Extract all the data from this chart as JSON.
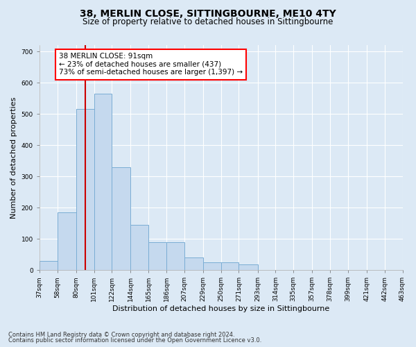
{
  "title": "38, MERLIN CLOSE, SITTINGBOURNE, ME10 4TY",
  "subtitle": "Size of property relative to detached houses in Sittingbourne",
  "xlabel": "Distribution of detached houses by size in Sittingbourne",
  "ylabel": "Number of detached properties",
  "footnote1": "Contains HM Land Registry data © Crown copyright and database right 2024.",
  "footnote2": "Contains public sector information licensed under the Open Government Licence v3.0.",
  "annotation_title": "38 MERLIN CLOSE: 91sqm",
  "annotation_line1": "← 23% of detached houses are smaller (437)",
  "annotation_line2": "73% of semi-detached houses are larger (1,397) →",
  "bar_color": "#c5d9ee",
  "bar_edge_color": "#7aadd4",
  "vline_color": "#cc0000",
  "vline_x": 91,
  "bin_edges": [
    37,
    58,
    80,
    101,
    122,
    144,
    165,
    186,
    207,
    229,
    250,
    271,
    293,
    314,
    335,
    357,
    378,
    399,
    421,
    442,
    463
  ],
  "bar_heights": [
    30,
    185,
    515,
    565,
    330,
    145,
    90,
    88,
    40,
    25,
    25,
    18,
    0,
    0,
    0,
    0,
    0,
    0,
    0,
    0
  ],
  "ylim": [
    0,
    720
  ],
  "yticks": [
    0,
    100,
    200,
    300,
    400,
    500,
    600,
    700
  ],
  "background_color": "#dce9f5",
  "plot_bg_color": "#dce9f5",
  "grid_color": "#ffffff",
  "title_fontsize": 10,
  "subtitle_fontsize": 8.5,
  "ylabel_fontsize": 8,
  "xlabel_fontsize": 8,
  "tick_fontsize": 6.5,
  "footnote_fontsize": 6.0
}
